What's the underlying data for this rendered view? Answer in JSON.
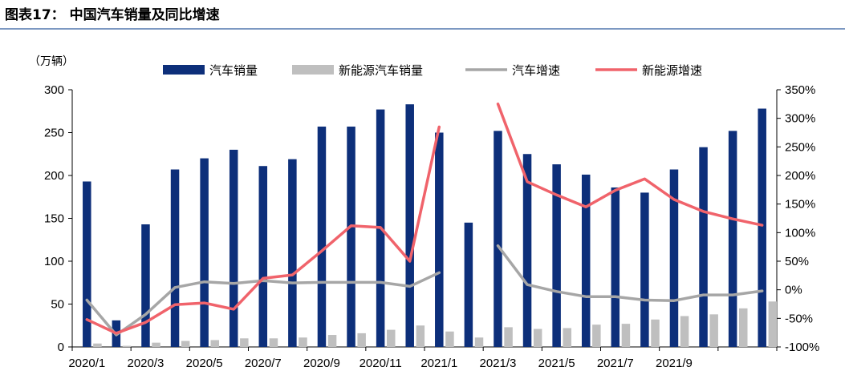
{
  "header": {
    "title": "图表17：  中国汽车销量及同比增速"
  },
  "chart_data": {
    "type": "bar",
    "title": "中国汽车销量及同比增速",
    "ylabel_left": "（万辆）",
    "ylim_left": [
      0,
      300
    ],
    "yticks_left": [
      "0",
      "50",
      "100",
      "150",
      "200",
      "250",
      "300"
    ],
    "ylim_right": [
      -100,
      350
    ],
    "yticks_right": [
      "-100%",
      "-50%",
      "0%",
      "50%",
      "100%",
      "150%",
      "200%",
      "250%",
      "300%",
      "350%"
    ],
    "categories": [
      "2020/1",
      "2020/2",
      "2020/3",
      "2020/4",
      "2020/5",
      "2020/6",
      "2020/7",
      "2020/8",
      "2020/9",
      "2020/10",
      "2020/11",
      "2020/12",
      "2021/1",
      "2021/2",
      "2021/3",
      "2021/4",
      "2021/5",
      "2021/6",
      "2021/7",
      "2021/8",
      "2021/9",
      "2021/10",
      "2021/11",
      "2021/12"
    ],
    "xtick_labels": [
      "2020/1",
      "2020/3",
      "2020/5",
      "2020/7",
      "2020/9",
      "2020/11",
      "2021/1",
      "2021/3",
      "2021/5",
      "2021/7",
      "2021/9"
    ],
    "legend_position": "top",
    "series": [
      {
        "name": "汽车销量",
        "kind": "bar",
        "axis": "left",
        "color": "#0d2f7a",
        "values": [
          193,
          31,
          143,
          207,
          220,
          230,
          211,
          219,
          257,
          257,
          277,
          283,
          250,
          145,
          252,
          225,
          213,
          201,
          186,
          180,
          207,
          233,
          252,
          278
        ]
      },
      {
        "name": "新能源汽车销量",
        "kind": "bar",
        "axis": "left",
        "color": "#bfbfbf",
        "values": [
          4,
          1.3,
          5,
          7,
          8,
          10,
          10,
          11,
          14,
          16,
          20,
          25,
          18,
          11,
          23,
          21,
          22,
          26,
          27,
          32,
          36,
          38,
          45,
          53
        ]
      },
      {
        "name": "汽车增速",
        "kind": "line",
        "axis": "right",
        "color": "#a6a6a6",
        "values": [
          -18,
          -79,
          -43,
          4,
          14,
          11,
          16,
          12,
          13,
          13,
          13,
          6,
          30,
          null,
          77,
          9,
          -3,
          -12,
          -12,
          -18,
          -19,
          -9,
          -9,
          -2
        ]
      },
      {
        "name": "新能源增速",
        "kind": "line",
        "axis": "right",
        "color": "#f0636b",
        "values": [
          -52,
          -76,
          -57,
          -26,
          -23,
          -34,
          20,
          26,
          68,
          112,
          109,
          50,
          285,
          null,
          325,
          189,
          166,
          145,
          174,
          194,
          158,
          137,
          124,
          113
        ]
      }
    ]
  }
}
